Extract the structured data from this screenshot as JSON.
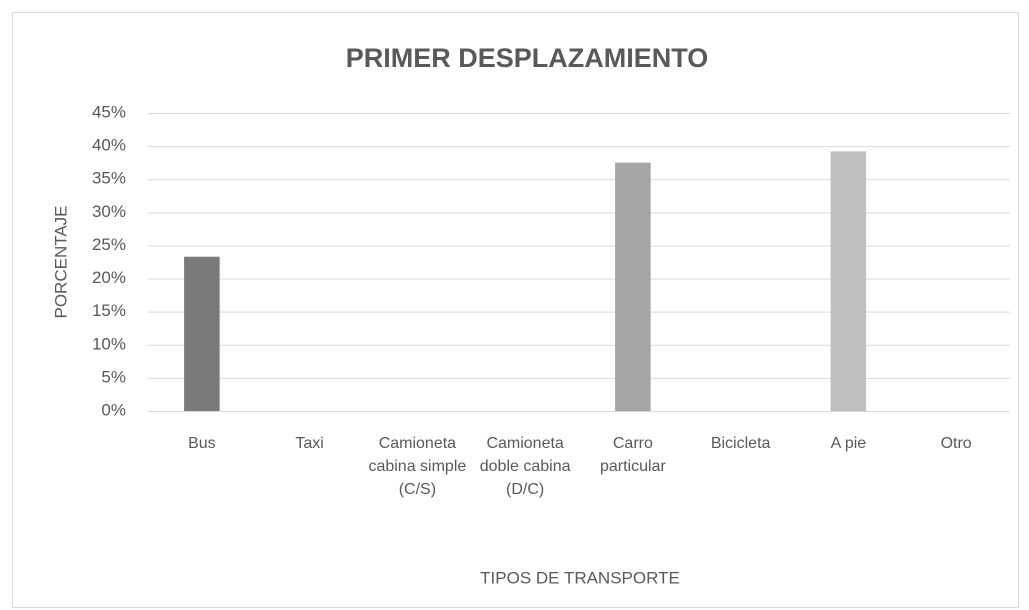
{
  "chart_data": {
    "type": "bar",
    "title": "PRIMER DESPLAZAMIENTO",
    "x_label": "TIPOS DE TRANSPORTE",
    "y_label": "PORCENTAJE",
    "categories": [
      "Bus",
      "Taxi",
      "Camioneta cabina simple (C/S)",
      "Camioneta doble cabina (D/C)",
      "Carro particular",
      "Bicicleta",
      "A pie",
      "Otro"
    ],
    "values": [
      23.3,
      0,
      0,
      0,
      37.5,
      0,
      39.2,
      0
    ],
    "colors": [
      "#7a7a7a",
      "#7a7a7a",
      "#7a7a7a",
      "#7a7a7a",
      "#a5a5a5",
      "#a5a5a5",
      "#bfbfbf",
      "#bfbfbf"
    ],
    "ylim": [
      0,
      45
    ],
    "yticks": [
      {
        "value": 0,
        "label": "0%"
      },
      {
        "value": 5,
        "label": "5%"
      },
      {
        "value": 10,
        "label": "10%"
      },
      {
        "value": 15,
        "label": "15%"
      },
      {
        "value": 20,
        "label": "20%"
      },
      {
        "value": 25,
        "label": "25%"
      },
      {
        "value": 30,
        "label": "30%"
      },
      {
        "value": 35,
        "label": "35%"
      },
      {
        "value": 40,
        "label": "40%"
      },
      {
        "value": 45,
        "label": "45%"
      }
    ],
    "grid": true
  }
}
